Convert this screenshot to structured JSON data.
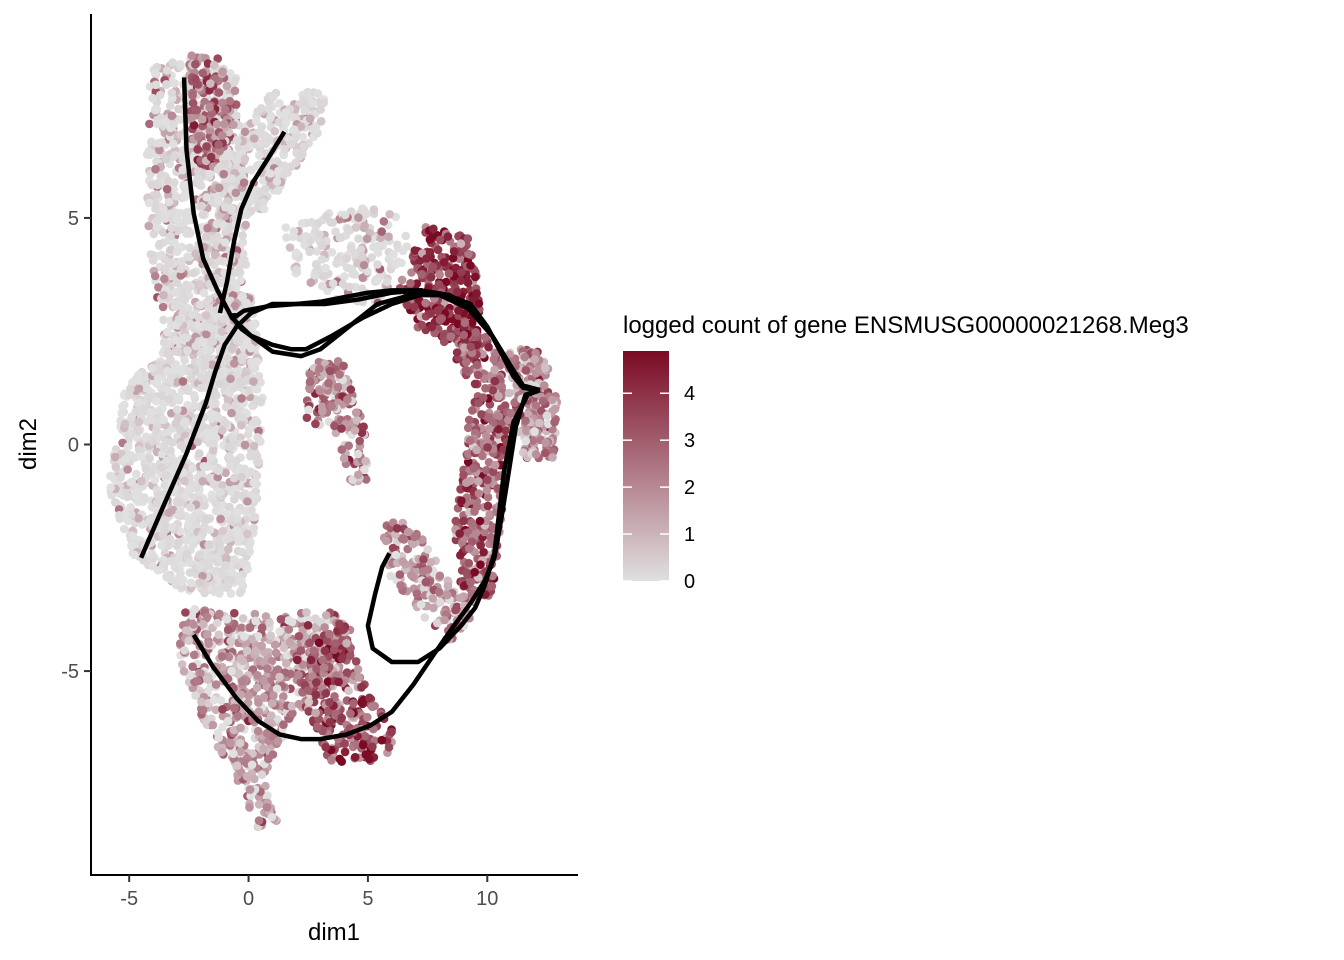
{
  "chart_data": {
    "type": "scatter",
    "xlabel": "dim1",
    "ylabel": "dim2",
    "xlim": [
      -6.6,
      13.8
    ],
    "ylim": [
      -9.5,
      9.5
    ],
    "x_ticks": [
      -5,
      0,
      5,
      10
    ],
    "y_ticks": [
      -5,
      0,
      5
    ],
    "x_tick_labels": [
      "-5",
      "0",
      "5",
      "10"
    ],
    "y_tick_labels": [
      "-5",
      "0",
      "5"
    ],
    "grid": false,
    "point_color_scale": {
      "title": "logged count of gene ENSMUSG00000021268.Meg3",
      "min": 0,
      "max": 4.9,
      "low_color": "#e0e0e0",
      "high_color": "#7a0a24",
      "ticks": [
        0,
        1,
        2,
        3,
        4
      ],
      "tick_labels": [
        "0",
        "1",
        "2",
        "3",
        "4"
      ],
      "legend_position": "right"
    },
    "point_clusters": [
      {
        "name": "upper-left column",
        "polygon": [
          [
            -4.1,
            8.3
          ],
          [
            -2.8,
            8.6
          ],
          [
            -0.5,
            8.2
          ],
          [
            -0.3,
            6.3
          ],
          [
            -0.1,
            4.0
          ],
          [
            0.2,
            2.0
          ],
          [
            -0.4,
            0.8
          ],
          [
            -1.6,
            1.6
          ],
          [
            -3.4,
            2.1
          ],
          [
            -4.1,
            3.9
          ],
          [
            -4.3,
            6.0
          ]
        ],
        "count": 900,
        "value_mean": 0.8
      },
      {
        "name": "upper-left hot column",
        "polygon": [
          [
            -2.5,
            8.6
          ],
          [
            -1.0,
            8.5
          ],
          [
            -0.6,
            7.0
          ],
          [
            -1.5,
            5.9
          ],
          [
            -2.4,
            6.4
          ]
        ],
        "count": 150,
        "value_mean": 2.4
      },
      {
        "name": "upper diagonal arm",
        "polygon": [
          [
            -1.5,
            6.0
          ],
          [
            1.0,
            7.8
          ],
          [
            3.2,
            7.8
          ],
          [
            3.1,
            7.0
          ],
          [
            0.8,
            5.2
          ],
          [
            -1.0,
            4.4
          ]
        ],
        "count": 320,
        "value_mean": 0.1
      },
      {
        "name": "top middle branch",
        "polygon": [
          [
            1.5,
            4.8
          ],
          [
            4.5,
            5.3
          ],
          [
            6.5,
            5.0
          ],
          [
            6.8,
            4.2
          ],
          [
            5.5,
            3.1
          ],
          [
            3.4,
            3.2
          ],
          [
            1.8,
            3.8
          ]
        ],
        "count": 200,
        "value_mean": 0.5
      },
      {
        "name": "left body",
        "polygon": [
          [
            -3.0,
            3.0
          ],
          [
            0.2,
            3.4
          ],
          [
            0.6,
            1.0
          ],
          [
            0.3,
            -1.6
          ],
          [
            -0.2,
            -3.3
          ],
          [
            -2.5,
            -3.3
          ],
          [
            -4.8,
            -2.5
          ],
          [
            -5.9,
            -1.0
          ],
          [
            -5.2,
            1.2
          ],
          [
            -3.8,
            2.0
          ]
        ],
        "count": 1400,
        "value_mean": 0.15
      },
      {
        "name": "inner island",
        "polygon": [
          [
            2.5,
            1.8
          ],
          [
            3.9,
            1.9
          ],
          [
            4.9,
            0.3
          ],
          [
            5.0,
            -0.8
          ],
          [
            4.3,
            -0.9
          ],
          [
            3.6,
            0.3
          ],
          [
            2.4,
            0.5
          ]
        ],
        "count": 180,
        "value_mean": 2.0
      },
      {
        "name": "upper right hot cluster",
        "polygon": [
          [
            6.3,
            3.5
          ],
          [
            7.4,
            4.8
          ],
          [
            9.2,
            4.7
          ],
          [
            9.8,
            3.2
          ],
          [
            9.6,
            2.4
          ],
          [
            8.4,
            2.2
          ],
          [
            7.0,
            2.6
          ]
        ],
        "count": 280,
        "value_mean": 3.8
      },
      {
        "name": "right arc",
        "polygon": [
          [
            9.0,
            2.8
          ],
          [
            10.4,
            2.2
          ],
          [
            10.9,
            0.6
          ],
          [
            10.6,
            -1.6
          ],
          [
            10.2,
            -3.4
          ],
          [
            9.0,
            -3.6
          ],
          [
            8.6,
            -2.0
          ],
          [
            9.0,
            -0.4
          ],
          [
            9.4,
            1.2
          ],
          [
            8.6,
            2.0
          ]
        ],
        "count": 420,
        "value_mean": 3.0
      },
      {
        "name": "far right cluster",
        "polygon": [
          [
            10.8,
            2.1
          ],
          [
            12.1,
            2.1
          ],
          [
            13.0,
            1.3
          ],
          [
            12.8,
            -0.3
          ],
          [
            11.6,
            -0.3
          ],
          [
            10.8,
            0.6
          ]
        ],
        "count": 220,
        "value_mean": 1.8
      },
      {
        "name": "lower middle branch",
        "polygon": [
          [
            5.5,
            -1.6
          ],
          [
            7.0,
            -1.8
          ],
          [
            8.4,
            -3.0
          ],
          [
            9.4,
            -3.8
          ],
          [
            8.4,
            -4.4
          ],
          [
            7.0,
            -3.6
          ],
          [
            5.9,
            -2.9
          ]
        ],
        "count": 160,
        "value_mean": 1.8
      },
      {
        "name": "bottom left arm",
        "polygon": [
          [
            -2.8,
            -3.6
          ],
          [
            0.1,
            -3.7
          ],
          [
            3.5,
            -3.7
          ],
          [
            4.3,
            -4.0
          ],
          [
            3.6,
            -5.4
          ],
          [
            1.8,
            -6.0
          ],
          [
            0.7,
            -7.6
          ],
          [
            1.2,
            -8.3
          ],
          [
            0.7,
            -8.8
          ],
          [
            0.2,
            -8.2
          ],
          [
            -0.7,
            -7.3
          ],
          [
            -1.7,
            -6.3
          ],
          [
            -2.9,
            -4.8
          ]
        ],
        "count": 700,
        "value_mean": 1.4
      },
      {
        "name": "bottom hot cluster",
        "polygon": [
          [
            1.8,
            -4.6
          ],
          [
            4.1,
            -3.8
          ],
          [
            5.0,
            -5.5
          ],
          [
            6.3,
            -6.4
          ],
          [
            5.6,
            -7.0
          ],
          [
            3.4,
            -7.0
          ],
          [
            2.4,
            -5.8
          ]
        ],
        "count": 260,
        "value_mean": 3.2
      }
    ],
    "trajectories": [
      {
        "name": "trajectory 1",
        "x": [
          -2.7,
          -2.6,
          -2.3,
          -1.9,
          -1.3,
          -0.7,
          0.1,
          1.0,
          1.8,
          2.4,
          3.5,
          4.8,
          6.0,
          7.2,
          8.3,
          9.3,
          10.0,
          10.6,
          11.1,
          11.5,
          12.2
        ],
        "y": [
          8.1,
          6.5,
          5.1,
          4.1,
          3.4,
          2.8,
          2.4,
          2.2,
          2.1,
          2.1,
          2.4,
          2.8,
          3.1,
          3.3,
          3.3,
          3.1,
          2.6,
          2.0,
          1.5,
          1.25,
          1.2
        ]
      },
      {
        "name": "trajectory 2",
        "x": [
          -0.6,
          -0.6,
          -0.3,
          1.0,
          2.2,
          3.0,
          4.2,
          5.4,
          6.8,
          8.0,
          9.2,
          10.2,
          10.9,
          11.4,
          12.2
        ],
        "y": [
          2.9,
          2.75,
          2.55,
          2.05,
          1.95,
          2.1,
          2.6,
          3.1,
          3.3,
          3.3,
          3.0,
          2.4,
          1.8,
          1.3,
          1.2
        ]
      },
      {
        "name": "trajectory 3",
        "x": [
          -0.6,
          -0.2,
          0.8,
          2.0,
          3.2,
          4.6,
          6.0,
          7.2,
          8.4,
          9.4,
          10.2,
          10.9,
          11.5,
          12.2
        ],
        "y": [
          2.8,
          2.95,
          3.05,
          3.1,
          3.1,
          3.2,
          3.35,
          3.4,
          3.3,
          3.0,
          2.4,
          1.8,
          1.3,
          1.2
        ]
      },
      {
        "name": "trajectory 4",
        "x": [
          -4.5,
          -3.6,
          -2.6,
          -1.8,
          -1.4,
          -1.0,
          -0.5,
          0.1,
          1.0,
          2.0,
          3.0,
          4.0,
          5.0,
          6.0,
          6.8,
          7.2,
          7.3
        ],
        "y": [
          -2.5,
          -1.4,
          -0.2,
          0.9,
          1.6,
          2.2,
          2.6,
          2.9,
          3.1,
          3.1,
          3.15,
          3.25,
          3.35,
          3.4,
          3.4,
          3.4,
          3.4
        ]
      },
      {
        "name": "trajectory 5",
        "x": [
          12.2,
          11.7,
          11.1,
          10.7,
          10.5,
          10.3,
          9.9,
          9.5,
          8.9,
          8.0,
          7.1,
          6.0,
          5.2,
          5.0,
          5.3,
          5.6,
          5.9
        ],
        "y": [
          1.2,
          1.1,
          0.5,
          -0.6,
          -1.5,
          -2.4,
          -3.1,
          -3.6,
          -4.0,
          -4.5,
          -4.8,
          -4.8,
          -4.5,
          -4.0,
          -3.3,
          -2.7,
          -2.4
        ]
      },
      {
        "name": "trajectory 6",
        "x": [
          12.2,
          11.6,
          11.2,
          10.9,
          10.6,
          10.3,
          9.9,
          9.3,
          8.6,
          7.8,
          6.9,
          6.0,
          5.1,
          4.1,
          3.0,
          2.2,
          1.3,
          0.4,
          -0.5,
          -1.5,
          -2.3
        ],
        "y": [
          1.2,
          1.1,
          0.4,
          -0.6,
          -1.6,
          -2.5,
          -3.0,
          -3.5,
          -4.0,
          -4.6,
          -5.3,
          -5.9,
          -6.2,
          -6.4,
          -6.5,
          -6.5,
          -6.4,
          -6.1,
          -5.6,
          -4.9,
          -4.2
        ]
      },
      {
        "name": "trajectory 7",
        "x": [
          -1.2,
          -0.9,
          -0.6,
          -0.3,
          0.2,
          0.8,
          1.5
        ],
        "y": [
          2.9,
          3.6,
          4.5,
          5.2,
          5.8,
          6.3,
          6.9
        ]
      }
    ]
  }
}
